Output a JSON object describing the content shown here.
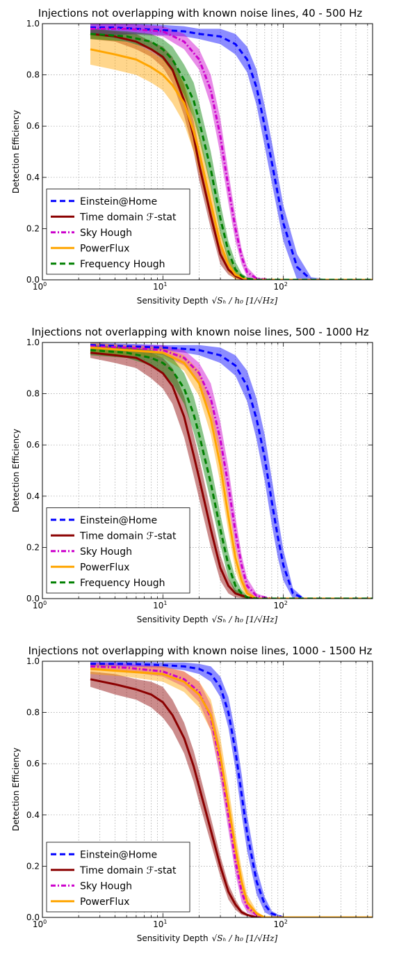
{
  "chart_data": [
    {
      "type": "line",
      "title": "Injections not overlapping with known noise lines, 40 - 500 Hz",
      "ylabel": "Detection Efficiency",
      "xlabel": "Sensitivity Depth √S_h / h_0 [1/√Hz]",
      "xlabel_parts": {
        "prefix": "Sensitivity Depth",
        "math": "√Sₕ / h₀  [1/√Hz]"
      },
      "xscale": "log",
      "xlim": [
        1,
        550
      ],
      "ylim": [
        0,
        1
      ],
      "xticks": [
        {
          "base": "10",
          "exp": "0"
        },
        {
          "base": "10",
          "exp": "1"
        },
        {
          "base": "10",
          "exp": "2"
        }
      ],
      "yticks": [
        "0.0",
        "0.2",
        "0.4",
        "0.6",
        "0.8",
        "1.0"
      ],
      "grid": true,
      "legend_position": "lower-left",
      "series": [
        {
          "name": "Einstein@Home",
          "color": "#0000ff",
          "style": "dashed",
          "x": [
            2.5,
            4,
            6,
            10,
            15,
            20,
            30,
            40,
            50,
            60,
            70,
            80,
            100,
            130,
            170,
            250,
            550
          ],
          "y": [
            0.985,
            0.985,
            0.98,
            0.975,
            0.97,
            0.96,
            0.95,
            0.92,
            0.86,
            0.75,
            0.6,
            0.46,
            0.22,
            0.05,
            0.0,
            0.0,
            0.0
          ],
          "band": [
            0.03,
            0.03,
            0.02,
            0.02,
            0.02,
            0.02,
            0.03,
            0.04,
            0.05,
            0.07,
            0.08,
            0.08,
            0.07,
            0.05,
            0.01,
            0.0,
            0.0
          ]
        },
        {
          "name": "Time domain ℱ-stat",
          "color": "#8b0000",
          "style": "solid",
          "x": [
            2.5,
            4,
            6,
            8,
            10,
            12,
            15,
            18,
            20,
            25,
            30,
            35,
            40,
            45,
            50,
            60,
            100,
            550
          ],
          "y": [
            0.96,
            0.95,
            0.93,
            0.9,
            0.87,
            0.82,
            0.7,
            0.56,
            0.45,
            0.25,
            0.1,
            0.04,
            0.015,
            0.005,
            0.0,
            0.0,
            0.0,
            0.0
          ],
          "band": [
            0.02,
            0.02,
            0.03,
            0.03,
            0.04,
            0.05,
            0.06,
            0.06,
            0.06,
            0.05,
            0.04,
            0.02,
            0.01,
            0.005,
            0.0,
            0.0,
            0.0,
            0.0
          ]
        },
        {
          "name": "Sky Hough",
          "color": "#cc00cc",
          "style": "dashdot",
          "x": [
            2.5,
            5,
            10,
            15,
            20,
            25,
            30,
            35,
            40,
            45,
            50,
            60,
            80,
            550
          ],
          "y": [
            0.98,
            0.98,
            0.97,
            0.93,
            0.86,
            0.74,
            0.56,
            0.36,
            0.2,
            0.09,
            0.03,
            0.005,
            0.0,
            0.0
          ],
          "band": [
            0.02,
            0.02,
            0.02,
            0.03,
            0.04,
            0.06,
            0.07,
            0.06,
            0.05,
            0.03,
            0.02,
            0.005,
            0.0,
            0.0
          ]
        },
        {
          "name": "PowerFlux",
          "color": "#ffa500",
          "style": "solid",
          "x": [
            2.5,
            4,
            6,
            8,
            10,
            12,
            15,
            18,
            20,
            25,
            30,
            35,
            40,
            45,
            50,
            60,
            550
          ],
          "y": [
            0.9,
            0.88,
            0.86,
            0.83,
            0.8,
            0.76,
            0.69,
            0.58,
            0.5,
            0.3,
            0.14,
            0.06,
            0.02,
            0.01,
            0.0,
            0.0,
            0.0
          ],
          "band": [
            0.06,
            0.06,
            0.06,
            0.06,
            0.06,
            0.07,
            0.08,
            0.08,
            0.08,
            0.07,
            0.05,
            0.03,
            0.02,
            0.01,
            0.0,
            0.0,
            0.0
          ]
        },
        {
          "name": "Frequency Hough",
          "color": "#008000",
          "style": "dashed",
          "x": [
            2.5,
            5,
            8,
            10,
            12,
            15,
            18,
            20,
            25,
            30,
            35,
            40,
            45,
            50,
            60,
            550
          ],
          "y": [
            0.96,
            0.95,
            0.93,
            0.9,
            0.86,
            0.78,
            0.7,
            0.62,
            0.43,
            0.24,
            0.11,
            0.04,
            0.015,
            0.005,
            0.0,
            0.0
          ],
          "band": [
            0.02,
            0.02,
            0.03,
            0.04,
            0.05,
            0.06,
            0.07,
            0.07,
            0.07,
            0.06,
            0.04,
            0.03,
            0.01,
            0.005,
            0.0,
            0.0
          ]
        }
      ]
    },
    {
      "type": "line",
      "title": "Injections not overlapping with known noise lines, 500 - 1000 Hz",
      "ylabel": "Detection Efficiency",
      "xlabel": "Sensitivity Depth √S_h / h_0 [1/√Hz]",
      "xlabel_parts": {
        "prefix": "Sensitivity Depth",
        "math": "√Sₕ / h₀  [1/√Hz]"
      },
      "xscale": "log",
      "xlim": [
        1,
        550
      ],
      "ylim": [
        0,
        1
      ],
      "xticks": [
        {
          "base": "10",
          "exp": "0"
        },
        {
          "base": "10",
          "exp": "1"
        },
        {
          "base": "10",
          "exp": "2"
        }
      ],
      "yticks": [
        "0.0",
        "0.2",
        "0.4",
        "0.6",
        "0.8",
        "1.0"
      ],
      "grid": true,
      "legend_position": "lower-left",
      "series": [
        {
          "name": "Einstein@Home",
          "color": "#0000ff",
          "style": "dashed",
          "x": [
            2.5,
            5,
            10,
            15,
            20,
            30,
            40,
            50,
            60,
            70,
            80,
            90,
            100,
            120,
            150,
            550
          ],
          "y": [
            0.99,
            0.985,
            0.98,
            0.975,
            0.97,
            0.95,
            0.91,
            0.83,
            0.7,
            0.55,
            0.38,
            0.24,
            0.13,
            0.02,
            0.0,
            0.0
          ],
          "band": [
            0.01,
            0.01,
            0.01,
            0.015,
            0.02,
            0.03,
            0.04,
            0.06,
            0.08,
            0.09,
            0.09,
            0.08,
            0.06,
            0.02,
            0.0,
            0.0
          ]
        },
        {
          "name": "Time domain ℱ-stat",
          "color": "#8b0000",
          "style": "solid",
          "x": [
            2.5,
            4,
            6,
            8,
            10,
            12,
            15,
            18,
            20,
            25,
            30,
            35,
            40,
            50,
            60,
            550
          ],
          "y": [
            0.96,
            0.95,
            0.94,
            0.91,
            0.88,
            0.83,
            0.71,
            0.56,
            0.47,
            0.27,
            0.12,
            0.05,
            0.02,
            0.005,
            0.0,
            0.0
          ],
          "band": [
            0.02,
            0.03,
            0.04,
            0.05,
            0.06,
            0.07,
            0.08,
            0.08,
            0.08,
            0.07,
            0.05,
            0.03,
            0.015,
            0.005,
            0.0,
            0.0
          ]
        },
        {
          "name": "Sky Hough",
          "color": "#cc00cc",
          "style": "dashdot",
          "x": [
            2.5,
            5,
            10,
            15,
            20,
            25,
            30,
            35,
            40,
            45,
            50,
            60,
            80,
            550
          ],
          "y": [
            0.985,
            0.98,
            0.97,
            0.94,
            0.88,
            0.78,
            0.62,
            0.44,
            0.26,
            0.13,
            0.05,
            0.01,
            0.0,
            0.0
          ],
          "band": [
            0.01,
            0.01,
            0.02,
            0.03,
            0.04,
            0.06,
            0.07,
            0.07,
            0.06,
            0.04,
            0.03,
            0.01,
            0.0,
            0.0
          ]
        },
        {
          "name": "PowerFlux",
          "color": "#ffa500",
          "style": "solid",
          "x": [
            2.5,
            5,
            10,
            15,
            20,
            25,
            30,
            35,
            40,
            45,
            50,
            60,
            550
          ],
          "y": [
            0.98,
            0.97,
            0.96,
            0.92,
            0.84,
            0.7,
            0.52,
            0.32,
            0.16,
            0.07,
            0.02,
            0.0,
            0.0
          ],
          "band": [
            0.02,
            0.02,
            0.02,
            0.03,
            0.05,
            0.06,
            0.07,
            0.06,
            0.05,
            0.03,
            0.02,
            0.0,
            0.0
          ]
        },
        {
          "name": "Frequency Hough",
          "color": "#008000",
          "style": "dashed",
          "x": [
            2.5,
            5,
            8,
            10,
            12,
            15,
            18,
            20,
            25,
            30,
            35,
            40,
            45,
            50,
            60,
            550
          ],
          "y": [
            0.97,
            0.96,
            0.94,
            0.92,
            0.89,
            0.82,
            0.72,
            0.64,
            0.45,
            0.27,
            0.13,
            0.05,
            0.02,
            0.005,
            0.0,
            0.0
          ],
          "band": [
            0.02,
            0.02,
            0.03,
            0.04,
            0.05,
            0.06,
            0.07,
            0.07,
            0.07,
            0.06,
            0.05,
            0.03,
            0.015,
            0.005,
            0.0,
            0.0
          ]
        }
      ]
    },
    {
      "type": "line",
      "title": "Injections not overlapping with known noise lines, 1000 - 1500 Hz",
      "ylabel": "Detection Efficiency",
      "xlabel": "Sensitivity Depth √S_h / h_0 [1/√Hz]",
      "xlabel_parts": {
        "prefix": "Sensitivity Depth",
        "math": "√Sₕ / h₀  [1/√Hz]"
      },
      "xscale": "log",
      "xlim": [
        1,
        550
      ],
      "ylim": [
        0,
        1
      ],
      "xticks": [
        {
          "base": "10",
          "exp": "0"
        },
        {
          "base": "10",
          "exp": "1"
        },
        {
          "base": "10",
          "exp": "2"
        }
      ],
      "yticks": [
        "0.0",
        "0.2",
        "0.4",
        "0.6",
        "0.8",
        "1.0"
      ],
      "grid": true,
      "legend_position": "lower-left",
      "series": [
        {
          "name": "Einstein@Home",
          "color": "#0000ff",
          "style": "dashed",
          "x": [
            2.5,
            5,
            10,
            15,
            20,
            25,
            30,
            35,
            40,
            45,
            50,
            60,
            70,
            80,
            100,
            130,
            550
          ],
          "y": [
            0.99,
            0.99,
            0.985,
            0.98,
            0.97,
            0.95,
            0.9,
            0.8,
            0.65,
            0.48,
            0.33,
            0.14,
            0.05,
            0.015,
            0.0,
            0.0,
            0.0
          ],
          "band": [
            0.01,
            0.01,
            0.01,
            0.015,
            0.02,
            0.03,
            0.04,
            0.06,
            0.07,
            0.08,
            0.07,
            0.05,
            0.03,
            0.01,
            0.0,
            0.0,
            0.0
          ]
        },
        {
          "name": "Time domain ℱ-stat",
          "color": "#8b0000",
          "style": "solid",
          "x": [
            2.5,
            4,
            6,
            8,
            10,
            12,
            15,
            18,
            20,
            25,
            30,
            35,
            40,
            45,
            50,
            60,
            550
          ],
          "y": [
            0.93,
            0.91,
            0.89,
            0.87,
            0.84,
            0.79,
            0.7,
            0.59,
            0.51,
            0.34,
            0.2,
            0.1,
            0.05,
            0.02,
            0.01,
            0.0,
            0.0
          ],
          "band": [
            0.03,
            0.04,
            0.04,
            0.05,
            0.06,
            0.06,
            0.06,
            0.06,
            0.06,
            0.05,
            0.04,
            0.03,
            0.02,
            0.01,
            0.005,
            0.0,
            0.0
          ]
        },
        {
          "name": "Sky Hough",
          "color": "#cc00cc",
          "style": "dashdot",
          "x": [
            2.5,
            5,
            10,
            15,
            20,
            25,
            30,
            35,
            40,
            45,
            50,
            60,
            70,
            550
          ],
          "y": [
            0.98,
            0.975,
            0.96,
            0.93,
            0.88,
            0.78,
            0.6,
            0.4,
            0.22,
            0.1,
            0.04,
            0.01,
            0.0,
            0.0
          ],
          "band": [
            0.015,
            0.015,
            0.02,
            0.03,
            0.04,
            0.05,
            0.06,
            0.06,
            0.05,
            0.04,
            0.02,
            0.01,
            0.0,
            0.0
          ]
        },
        {
          "name": "PowerFlux",
          "color": "#ffa500",
          "style": "solid",
          "x": [
            2.5,
            5,
            10,
            15,
            20,
            25,
            30,
            35,
            40,
            45,
            50,
            60,
            70,
            550
          ],
          "y": [
            0.97,
            0.96,
            0.95,
            0.92,
            0.87,
            0.79,
            0.63,
            0.44,
            0.27,
            0.14,
            0.06,
            0.015,
            0.0,
            0.0
          ],
          "band": [
            0.02,
            0.02,
            0.03,
            0.04,
            0.05,
            0.06,
            0.07,
            0.07,
            0.06,
            0.05,
            0.03,
            0.01,
            0.0,
            0.0
          ]
        }
      ]
    }
  ]
}
